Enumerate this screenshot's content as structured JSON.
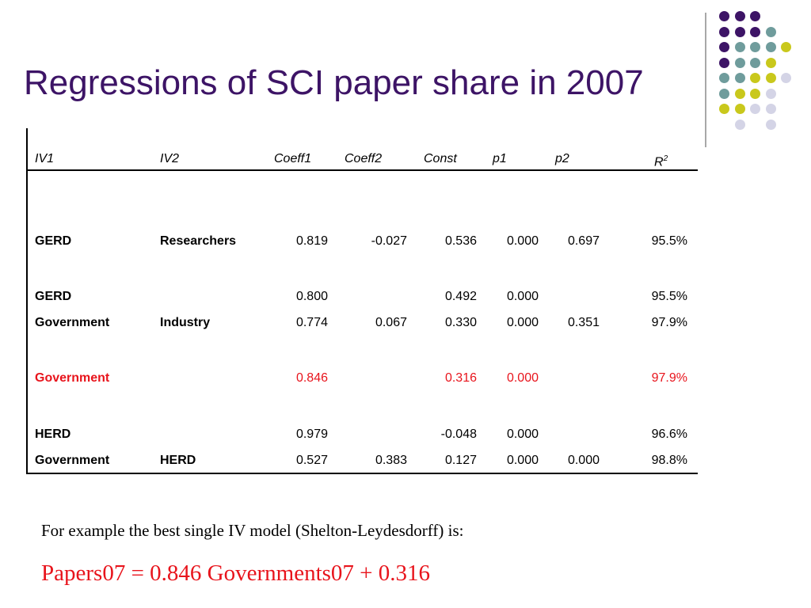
{
  "slide": {
    "title": "Regressions of SCI paper share in 2007",
    "accent_color": "#3d1466",
    "highlight_color": "#e8141c"
  },
  "decoration": {
    "palette": {
      "purple": "#3d1466",
      "teal": "#6f9c9c",
      "yellow": "#c9c81c",
      "lavender": "#d4d4e6"
    }
  },
  "table": {
    "headers": {
      "iv1": "IV1",
      "iv2": "IV2",
      "coeff1": "Coeff1",
      "coeff2": "Coeff2",
      "const": "Const",
      "p1": "p1",
      "p2": "p2",
      "r2": "R",
      "r2_sup": "2"
    },
    "rows": [
      {
        "iv1": "GERD",
        "iv2": "Researchers",
        "coeff1": "0.819",
        "coeff2": "-0.027",
        "const": "0.536",
        "p1": "0.000",
        "p2": "0.697",
        "r2": "95.5%"
      },
      {
        "iv1": "GERD",
        "iv2": "",
        "coeff1": "0.800",
        "coeff2": "",
        "const": "0.492",
        "p1": "0.000",
        "p2": "",
        "r2": "95.5%"
      },
      {
        "iv1": "Government",
        "iv2": "Industry",
        "coeff1": "0.774",
        "coeff2": "0.067",
        "const": "0.330",
        "p1": "0.000",
        "p2": "0.351",
        "r2": "97.9%"
      },
      {
        "iv1": "Government",
        "iv2": "",
        "coeff1": "0.846",
        "coeff2": "",
        "const": "0.316",
        "p1": "0.000",
        "p2": "",
        "r2": "97.9%"
      },
      {
        "iv1": "HERD",
        "iv2": "",
        "coeff1": "0.979",
        "coeff2": "",
        "const": "-0.048",
        "p1": "0.000",
        "p2": "",
        "r2": "96.6%"
      },
      {
        "iv1": "Government",
        "iv2": "HERD",
        "coeff1": "0.527",
        "coeff2": "0.383",
        "const": "0.127",
        "p1": "0.000",
        "p2": "0.000",
        "r2": "98.8%"
      }
    ]
  },
  "note": "For example the best single IV model (Shelton-Leydesdorff) is:",
  "formula": "Papers07 = 0.846 Governments07 + 0.316"
}
